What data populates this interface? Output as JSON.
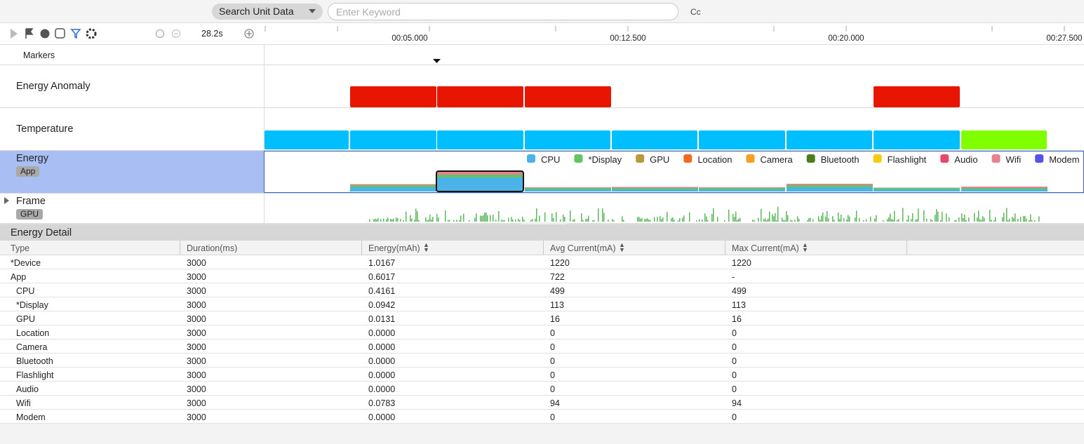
{
  "toolbar": {
    "search_unit": "Search Unit Data",
    "keyword_placeholder": "Enter Keyword",
    "case_toggle": "Cc",
    "duration": "28.2s"
  },
  "timeline": {
    "ticks": [
      "00:05.000",
      "00:12.500",
      "00:20.000",
      "00:27.500"
    ]
  },
  "tracks": [
    {
      "label": "Markers"
    },
    {
      "label": "Energy Anomaly"
    },
    {
      "label": "Temperature"
    },
    {
      "label": "Energy",
      "tag": "App"
    },
    {
      "label": "Frame",
      "tag": "GPU"
    }
  ],
  "legend": [
    {
      "name": "CPU",
      "color": "#4ab3e8"
    },
    {
      "name": "*Display",
      "color": "#62c462"
    },
    {
      "name": "GPU",
      "color": "#b89a3c"
    },
    {
      "name": "Location",
      "color": "#f06a22"
    },
    {
      "name": "Camera",
      "color": "#f5a020"
    },
    {
      "name": "Bluetooth",
      "color": "#4a7f1a"
    },
    {
      "name": "Flashlight",
      "color": "#f5cc10"
    },
    {
      "name": "Audio",
      "color": "#e8476a"
    },
    {
      "name": "Wifi",
      "color": "#e8808f"
    },
    {
      "name": "Modem",
      "color": "#5553e8"
    }
  ],
  "detail": {
    "title": "Energy Detail",
    "columns": [
      "Type",
      "Duration(ms)",
      "Energy(mAh)",
      "Avg Current(mA)",
      "Max Current(mA)"
    ],
    "rows": [
      [
        "*Device",
        "3000",
        "1.0167",
        "1220",
        "1220"
      ],
      [
        "App",
        "3000",
        "0.6017",
        "722",
        "-"
      ],
      [
        "CPU",
        "3000",
        "0.4161",
        "499",
        "499"
      ],
      [
        "*Display",
        "3000",
        "0.0942",
        "113",
        "113"
      ],
      [
        "GPU",
        "3000",
        "0.0131",
        "16",
        "16"
      ],
      [
        "Location",
        "3000",
        "0.0000",
        "0",
        "0"
      ],
      [
        "Camera",
        "3000",
        "0.0000",
        "0",
        "0"
      ],
      [
        "Bluetooth",
        "3000",
        "0.0000",
        "0",
        "0"
      ],
      [
        "Flashlight",
        "3000",
        "0.0000",
        "0",
        "0"
      ],
      [
        "Audio",
        "3000",
        "0.0000",
        "0",
        "0"
      ],
      [
        "Wifi",
        "3000",
        "0.0783",
        "94",
        "94"
      ],
      [
        "Modem",
        "3000",
        "0.0000",
        "0",
        "0"
      ]
    ]
  }
}
